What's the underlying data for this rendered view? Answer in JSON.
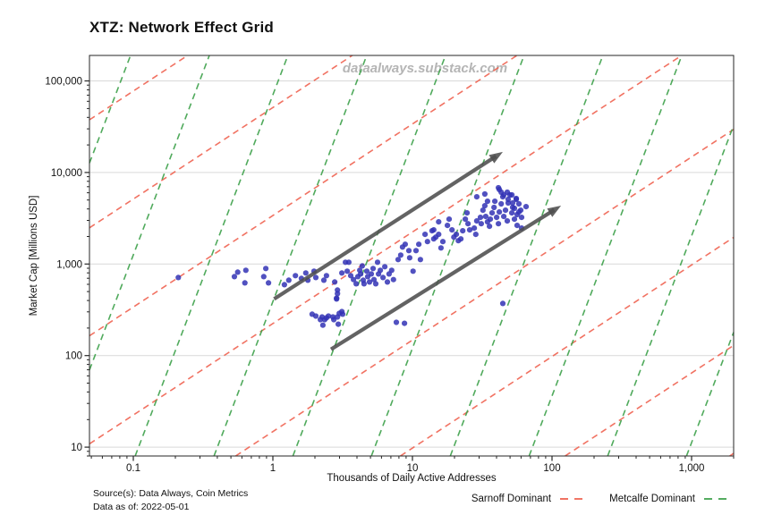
{
  "header": {
    "title": "XTZ: Network Effect Grid"
  },
  "watermark": "dataalways.substack.com",
  "footer": {
    "source_line1": "Source(s): Data Always, Coin Metrics",
    "source_line2": "Data as of: 2022-05-01"
  },
  "legend": {
    "items": [
      {
        "label": "Sarnoff Dominant",
        "color": "#ef6351",
        "style": "dashed"
      },
      {
        "label": "Metcalfe Dominant",
        "color": "#3da14a",
        "style": "dashed"
      }
    ]
  },
  "chart_data": {
    "type": "scatter",
    "title": "XTZ: Network Effect Grid",
    "xlabel": "Thousands of Daily Active Addresses",
    "ylabel": "Market Cap [Millions USD]",
    "x_scale": "log",
    "y_scale": "log",
    "xlim": [
      0.0485,
      2000
    ],
    "ylim": [
      8,
      190000
    ],
    "grid": "horizontal-major-only",
    "legend_position": "bottom-right",
    "x_ticks": [
      {
        "value": 0.1,
        "label": "0.1"
      },
      {
        "value": 1,
        "label": "1"
      },
      {
        "value": 10,
        "label": "10"
      },
      {
        "value": 100,
        "label": "100"
      },
      {
        "value": 1000,
        "label": "1,000"
      }
    ],
    "y_ticks": [
      {
        "value": 10,
        "label": "10"
      },
      {
        "value": 100,
        "label": "100"
      },
      {
        "value": 1000,
        "label": "1,000"
      },
      {
        "value": 10000,
        "label": "10,000"
      },
      {
        "value": 100000,
        "label": "100,000"
      }
    ],
    "colors": {
      "points": "#3333b5",
      "sarnoff": "#ef6351",
      "metcalfe": "#3da14a",
      "arrow": "#4d4d4d",
      "gridline": "#d9d9d9",
      "axis": "#262626",
      "watermark": "#b5b5b5"
    },
    "reference_lines": {
      "sarnoff": {
        "label": "Sarnoff Dominant",
        "slope_exponent": 1,
        "intercepts_log10": [
          -2.37,
          -1.19,
          -0.01,
          1.17,
          2.35,
          3.53,
          4.71,
          5.89
        ]
      },
      "metcalfe": {
        "label": "Metcalfe Dominant",
        "slope_exponent": 4,
        "intercepts_log10": [
          9.36,
          7.1,
          4.85,
          2.59,
          0.33,
          -1.92,
          -4.18,
          -6.44,
          -8.69,
          -10.95
        ]
      }
    },
    "arrows": [
      {
        "from": [
          1.02,
          415
        ],
        "to": [
          44.4,
          16800
        ]
      },
      {
        "from": [
          2.61,
          117
        ],
        "to": [
          116,
          4340
        ]
      }
    ],
    "points": [
      [
        0.21,
        713
      ],
      [
        0.53,
        729
      ],
      [
        0.56,
        816
      ],
      [
        0.64,
        854
      ],
      [
        0.63,
        622
      ],
      [
        0.89,
        893
      ],
      [
        0.86,
        729
      ],
      [
        0.93,
        622
      ],
      [
        1.21,
        595
      ],
      [
        1.3,
        666
      ],
      [
        1.45,
        746
      ],
      [
        1.6,
        697
      ],
      [
        1.72,
        798
      ],
      [
        1.78,
        666
      ],
      [
        1.97,
        835
      ],
      [
        2.03,
        713
      ],
      [
        2.32,
        666
      ],
      [
        2.42,
        746
      ],
      [
        2.77,
        637
      ],
      [
        2.9,
        520
      ],
      [
        2.86,
        424
      ],
      [
        3.12,
        798
      ],
      [
        3.31,
        1047
      ],
      [
        3.5,
        1047
      ],
      [
        3.41,
        835
      ],
      [
        3.61,
        746
      ],
      [
        3.78,
        677
      ],
      [
        3.95,
        608
      ],
      [
        4.06,
        729
      ],
      [
        4.19,
        854
      ],
      [
        4.25,
        780
      ],
      [
        4.37,
        955
      ],
      [
        4.44,
        666
      ],
      [
        4.5,
        608
      ],
      [
        4.71,
        835
      ],
      [
        4.78,
        729
      ],
      [
        4.92,
        637
      ],
      [
        5.07,
        780
      ],
      [
        5.22,
        893
      ],
      [
        5.3,
        677
      ],
      [
        5.46,
        608
      ],
      [
        5.62,
        1047
      ],
      [
        5.71,
        780
      ],
      [
        5.88,
        854
      ],
      [
        6.15,
        713
      ],
      [
        6.33,
        934
      ],
      [
        6.61,
        637
      ],
      [
        6.8,
        780
      ],
      [
        7.1,
        854
      ],
      [
        7.31,
        677
      ],
      [
        7.89,
        1120
      ],
      [
        8.24,
        1253
      ],
      [
        8.49,
        1535
      ],
      [
        8.87,
        1644
      ],
      [
        9.42,
        1403
      ],
      [
        9.55,
        1172
      ],
      [
        10.1,
        835
      ],
      [
        10.6,
        1403
      ],
      [
        11.1,
        1644
      ],
      [
        11.4,
        1120
      ],
      [
        12.3,
        2110
      ],
      [
        12.8,
        1758
      ],
      [
        13.8,
        2307
      ],
      [
        14.7,
        1968
      ],
      [
        15.4,
        2890
      ],
      [
        14.2,
        2359
      ],
      [
        15.4,
        2110
      ],
      [
        14.2,
        1883
      ],
      [
        16.5,
        1758
      ],
      [
        16.0,
        1500
      ],
      [
        17.8,
        2642
      ],
      [
        18.3,
        3090
      ],
      [
        19.2,
        2359
      ],
      [
        19.8,
        1968
      ],
      [
        20.6,
        2110
      ],
      [
        21.3,
        1799
      ],
      [
        22.2,
        1883
      ],
      [
        22.9,
        2307
      ],
      [
        23.9,
        3090
      ],
      [
        24.6,
        3622
      ],
      [
        25.0,
        2761
      ],
      [
        25.7,
        2359
      ],
      [
        27.7,
        2470
      ],
      [
        28.4,
        2110
      ],
      [
        28.9,
        2956
      ],
      [
        30.7,
        3236
      ],
      [
        31.1,
        2761
      ],
      [
        32.0,
        3873
      ],
      [
        33.0,
        4335
      ],
      [
        33.5,
        3311
      ],
      [
        34.5,
        2890
      ],
      [
        35.6,
        2581
      ],
      [
        36.1,
        3090
      ],
      [
        37.2,
        3622
      ],
      [
        38.4,
        4150
      ],
      [
        38.9,
        4853
      ],
      [
        40.1,
        3236
      ],
      [
        41.3,
        2761
      ],
      [
        41.9,
        3705
      ],
      [
        43.2,
        4539
      ],
      [
        44.4,
        5433
      ],
      [
        41.9,
        6516
      ],
      [
        45.1,
        3311
      ],
      [
        46.4,
        3873
      ],
      [
        47.8,
        2956
      ],
      [
        48.5,
        4645
      ],
      [
        49.9,
        5690
      ],
      [
        51.5,
        3622
      ],
      [
        52.2,
        4150
      ],
      [
        53.8,
        3090
      ],
      [
        55.4,
        5082
      ],
      [
        56.2,
        2642
      ],
      [
        57.9,
        3705
      ],
      [
        60.5,
        2470
      ],
      [
        28.9,
        5433
      ],
      [
        33.0,
        5822
      ],
      [
        34.5,
        4853
      ],
      [
        41.3,
        6816
      ],
      [
        43.2,
        6086
      ],
      [
        45.1,
        5690
      ],
      [
        47.8,
        6086
      ],
      [
        48.5,
        5082
      ],
      [
        51.5,
        5690
      ],
      [
        52.2,
        4645
      ],
      [
        53.8,
        4057
      ],
      [
        55.4,
        5196
      ],
      [
        56.2,
        3467
      ],
      [
        57.9,
        4539
      ],
      [
        59.6,
        3873
      ],
      [
        60.5,
        3236
      ],
      [
        65.1,
        4242
      ],
      [
        2.9,
        474
      ],
      [
        2.86,
        415
      ],
      [
        1.91,
        283
      ],
      [
        2.03,
        270
      ],
      [
        2.19,
        247
      ],
      [
        2.25,
        264
      ],
      [
        2.35,
        247
      ],
      [
        2.42,
        258
      ],
      [
        2.5,
        270
      ],
      [
        2.69,
        264
      ],
      [
        2.73,
        247
      ],
      [
        2.9,
        264
      ],
      [
        2.99,
        289
      ],
      [
        3.12,
        302
      ],
      [
        3.16,
        283
      ],
      [
        2.28,
        215
      ],
      [
        2.94,
        220
      ],
      [
        7.66,
        231
      ],
      [
        8.76,
        225
      ],
      [
        44.4,
        371
      ]
    ]
  }
}
